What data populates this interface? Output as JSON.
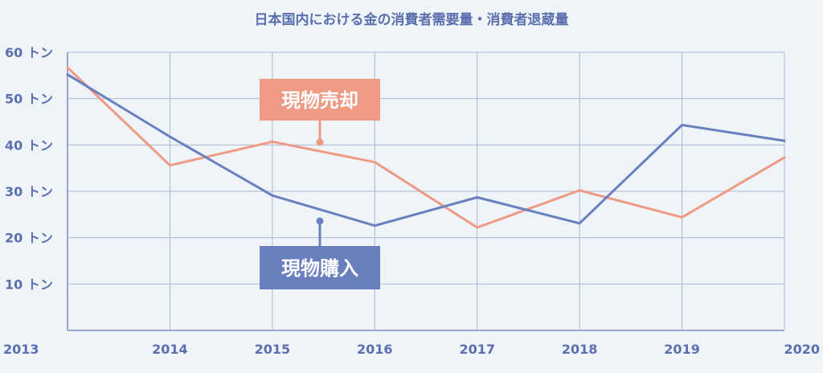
{
  "chart_data": {
    "type": "line",
    "title": "日本国内における金の消費者需要量・消費者退蔵量",
    "x": [
      "2013",
      "2014",
      "2015",
      "2016",
      "2017",
      "2018",
      "2019",
      "2020"
    ],
    "y_unit": "トン",
    "ylim": [
      0,
      60
    ],
    "yticks": [
      10,
      20,
      30,
      40,
      50,
      60
    ],
    "ytick_labels": [
      "10 トン",
      "20 トン",
      "30 トン",
      "40 トン",
      "50 トン",
      "60 トン"
    ],
    "grid": true,
    "series": [
      {
        "name": "現物売却",
        "color": "#ee9a84",
        "values": [
          56.7,
          35.6,
          40.7,
          36.3,
          22.2,
          30.2,
          24.4,
          37.3
        ]
      },
      {
        "name": "現物購入",
        "color": "#6a80be",
        "values": [
          55.2,
          41.8,
          29.1,
          22.6,
          28.7,
          23.1,
          44.3,
          40.9
        ]
      }
    ]
  }
}
